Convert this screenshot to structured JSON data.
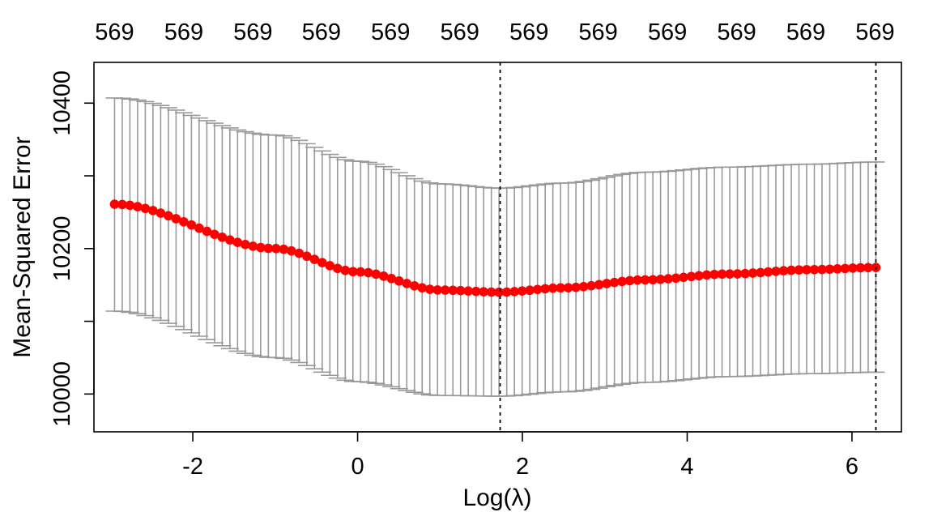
{
  "chart_data": {
    "type": "scatter",
    "title": "",
    "xlabel": "Log(λ)",
    "ylabel": "Mean-Squared Error",
    "xlim": [
      -3.2,
      6.6
    ],
    "ylim": [
      9948,
      10456
    ],
    "x_ticks": [
      -2,
      0,
      2,
      4,
      6
    ],
    "x_tick_labels": [
      "-2",
      "0",
      "2",
      "4",
      "6"
    ],
    "y_ticks": [
      10000,
      10100,
      10200,
      10300,
      10400
    ],
    "y_tick_labels": [
      "10000",
      "",
      "10200",
      "",
      "10400"
    ],
    "top_axis_ticks": [
      -2.95,
      -2.11,
      -1.27,
      -0.44,
      0.4,
      1.24,
      2.08,
      2.92,
      3.76,
      4.6,
      5.44,
      6.28
    ],
    "top_axis_labels": [
      "569",
      "569",
      "569",
      "569",
      "569",
      "569",
      "569",
      "569",
      "569",
      "569",
      "569",
      "569"
    ],
    "vlines": [
      1.73,
      6.29
    ],
    "vline_style": "dotted",
    "grid": false,
    "point_color": "#ff0000",
    "errorbar_color": "#999999",
    "series": [
      {
        "x_start": -2.95,
        "x_end": 6.29,
        "n_points": 100,
        "x": [
          -2.95,
          -1.0,
          0.0,
          1.0,
          1.73,
          2.5,
          3.5,
          4.5,
          5.5,
          6.29
        ],
        "mean": [
          10261,
          10200,
          10168,
          10143,
          10140,
          10146,
          10157,
          10165,
          10171,
          10174
        ],
        "upper": [
          10407,
          10356,
          10320,
          10289,
          10283,
          10290,
          10305,
          10312,
          10316,
          10319
        ],
        "lower": [
          10114,
          10050,
          10017,
          9998,
          9997,
          10003,
          10016,
          10024,
          10028,
          10030
        ]
      }
    ]
  }
}
